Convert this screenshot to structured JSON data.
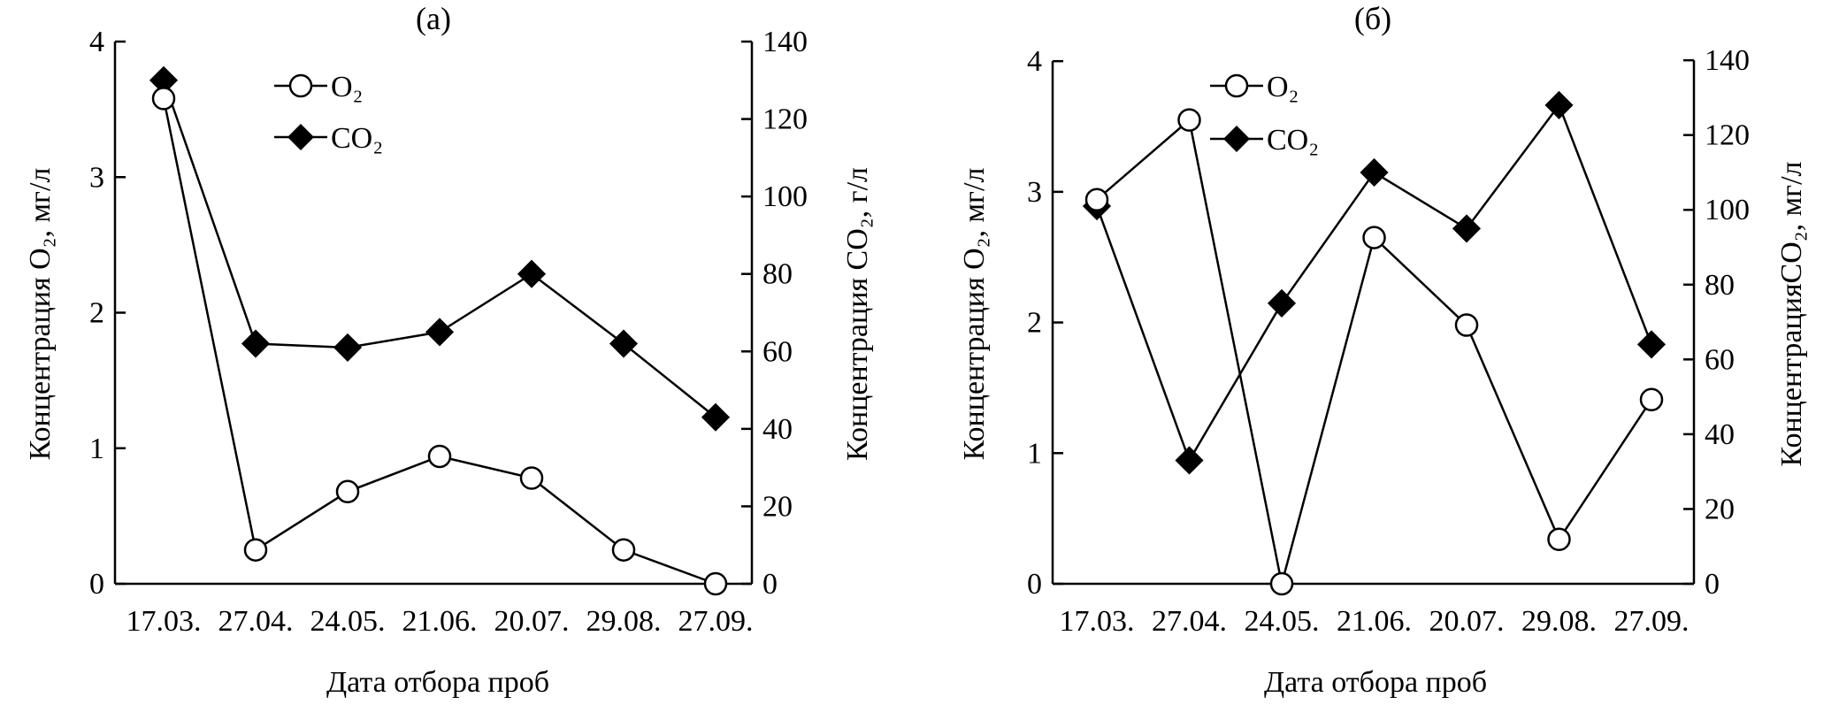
{
  "chart_data": [
    {
      "type": "line",
      "title": "(а)",
      "xlabel": "Дата отбора проб",
      "ylabel_left": "Концентрация O₂, мг/л",
      "ylabel_right": "Концентрация  CO₂, г/л",
      "categories": [
        "17.03.",
        "27.04.",
        "24.05.",
        "21.06.",
        "20.07.",
        "29.08.",
        "27.09."
      ],
      "ylim_left": [
        0,
        4
      ],
      "yticks_left": [
        "0",
        "1",
        "2",
        "3",
        "4"
      ],
      "ylim_right": [
        0,
        140
      ],
      "yticks_right": [
        "0",
        "20",
        "40",
        "60",
        "80",
        "100",
        "120",
        "140"
      ],
      "legend_placement": "top-center",
      "series": [
        {
          "name": "O₂",
          "axis": "left",
          "marker": "open-circle",
          "values": [
            3.58,
            0.25,
            0.68,
            0.94,
            0.78,
            0.25,
            0.0
          ]
        },
        {
          "name": "CO₂",
          "axis": "right",
          "marker": "filled-diamond",
          "values": [
            130,
            62,
            61,
            65,
            80,
            62,
            43
          ]
        }
      ]
    },
    {
      "type": "line",
      "title": "(б)",
      "xlabel": "Дата отбора проб",
      "ylabel_left": "Концентрация O₂, мг/л",
      "ylabel_right": "КонцентрацияCO₂, мг/л",
      "categories": [
        "17.03.",
        "27.04.",
        "24.05.",
        "21.06.",
        "20.07.",
        "29.08.",
        "27.09."
      ],
      "ylim_left": [
        0,
        4.15
      ],
      "yticks_left": [
        "0",
        "1",
        "2",
        "3",
        "4"
      ],
      "ylim_right": [
        0,
        145
      ],
      "yticks_right": [
        "0",
        "20",
        "40",
        "60",
        "80",
        "100",
        "120",
        "140"
      ],
      "legend_placement": "top-left",
      "series": [
        {
          "name": "O₂",
          "axis": "left",
          "marker": "open-circle",
          "values": [
            2.94,
            3.55,
            0.0,
            2.65,
            1.98,
            0.34,
            1.41
          ]
        },
        {
          "name": "CO₂",
          "axis": "right",
          "marker": "filled-diamond",
          "values": [
            101,
            33,
            75,
            110,
            95,
            128,
            64
          ]
        }
      ]
    }
  ]
}
